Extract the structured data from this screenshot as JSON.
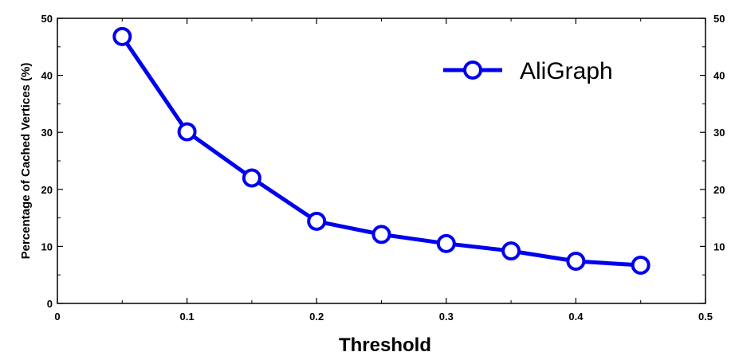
{
  "chart_data": {
    "type": "line",
    "xlabel": "Threshold",
    "ylabel": "Percentage of Cached Vertices (%)",
    "xlim": [
      0,
      0.5
    ],
    "ylim": [
      0,
      50
    ],
    "x_ticks": [
      "0",
      "0.1",
      "0.2",
      "0.3",
      "0.4",
      "0.5"
    ],
    "y_ticks": [
      "0",
      "10",
      "20",
      "30",
      "40",
      "50"
    ],
    "y_ticks_right": [
      "10",
      "20",
      "30",
      "40",
      "50"
    ],
    "grid": false,
    "legend_position": "top-right",
    "series": [
      {
        "name": "AliGraph",
        "color": "#0000ee",
        "marker": "open-circle",
        "x": [
          0.05,
          0.1,
          0.15,
          0.2,
          0.25,
          0.3,
          0.35,
          0.4,
          0.45
        ],
        "y": [
          46.8,
          30.1,
          22.0,
          14.4,
          12.1,
          10.5,
          9.2,
          7.4,
          6.7
        ]
      }
    ]
  }
}
